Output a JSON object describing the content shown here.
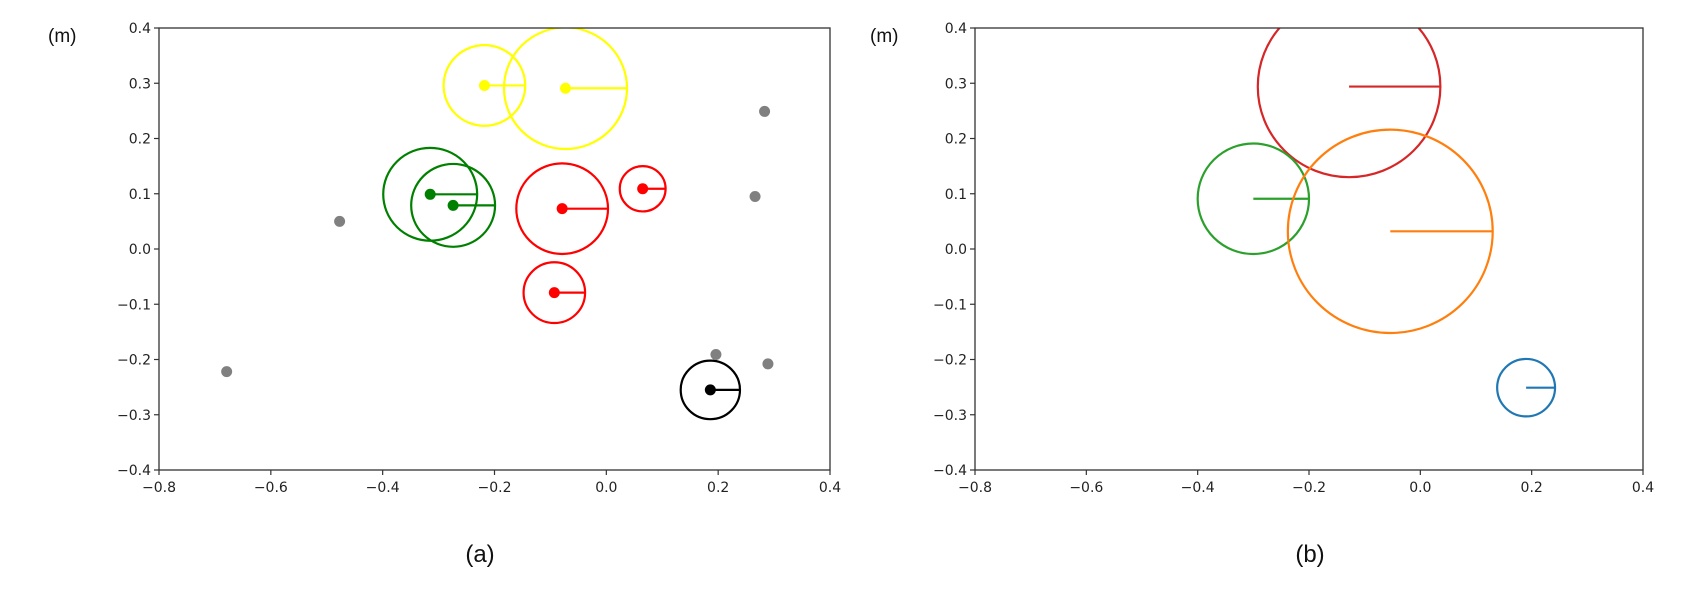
{
  "chart_data": [
    {
      "type": "scatter",
      "caption": "(a)",
      "ylabel": "(m)",
      "xlim": [
        -0.8,
        0.4
      ],
      "ylim": [
        -0.4,
        0.4
      ],
      "xticks": [
        "−0.8",
        "−0.6",
        "−0.4",
        "−0.2",
        "0.0",
        "0.2",
        "0.4"
      ],
      "yticks": [
        "−0.4",
        "−0.3",
        "−0.2",
        "−0.1",
        "0.0",
        "0.1",
        "0.2",
        "0.3",
        "0.4"
      ],
      "grid": false,
      "circles": [
        {
          "x": -0.218,
          "y": 0.296,
          "r": 0.073,
          "color": "#ffff00"
        },
        {
          "x": -0.073,
          "y": 0.291,
          "r": 0.11,
          "color": "#ffff00"
        },
        {
          "x": -0.315,
          "y": 0.099,
          "r": 0.084,
          "color": "#008000"
        },
        {
          "x": -0.274,
          "y": 0.079,
          "r": 0.075,
          "color": "#008000"
        },
        {
          "x": -0.079,
          "y": 0.073,
          "r": 0.082,
          "color": "#ff0000"
        },
        {
          "x": 0.065,
          "y": 0.109,
          "r": 0.041,
          "color": "#ff0000"
        },
        {
          "x": -0.093,
          "y": -0.079,
          "r": 0.055,
          "color": "#ff0000"
        },
        {
          "x": 0.186,
          "y": -0.255,
          "r": 0.053,
          "color": "#000000"
        }
      ],
      "points": [
        {
          "x": -0.477,
          "y": 0.05,
          "color": "#808080"
        },
        {
          "x": -0.679,
          "y": -0.222,
          "color": "#808080"
        },
        {
          "x": 0.196,
          "y": -0.191,
          "color": "#808080"
        },
        {
          "x": 0.289,
          "y": -0.208,
          "color": "#808080"
        },
        {
          "x": 0.266,
          "y": 0.095,
          "color": "#808080"
        },
        {
          "x": 0.283,
          "y": 0.249,
          "color": "#808080"
        }
      ]
    },
    {
      "type": "scatter",
      "caption": "(b)",
      "ylabel": "(m)",
      "xlim": [
        -0.8,
        0.4
      ],
      "ylim": [
        -0.4,
        0.4
      ],
      "xticks": [
        "−0.8",
        "−0.6",
        "−0.4",
        "−0.2",
        "0.0",
        "0.2",
        "0.4"
      ],
      "yticks": [
        "−0.4",
        "−0.3",
        "−0.2",
        "−0.1",
        "0.0",
        "0.1",
        "0.2",
        "0.3",
        "0.4"
      ],
      "grid": false,
      "circles": [
        {
          "x": -0.128,
          "y": 0.294,
          "r": 0.164,
          "color": "#d62728"
        },
        {
          "x": -0.3,
          "y": 0.091,
          "r": 0.1,
          "color": "#2ca02c"
        },
        {
          "x": -0.054,
          "y": 0.032,
          "r": 0.184,
          "color": "#ff7f0e"
        },
        {
          "x": 0.19,
          "y": -0.251,
          "r": 0.052,
          "color": "#1f77b4"
        }
      ],
      "points": []
    }
  ]
}
